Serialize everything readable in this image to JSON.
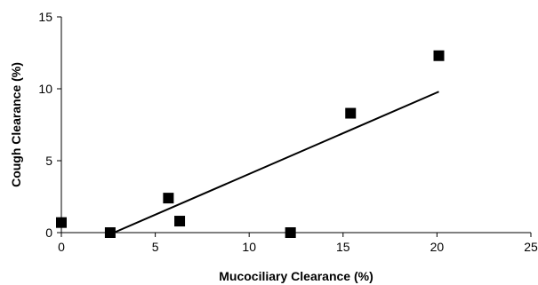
{
  "chart_data": {
    "type": "scatter",
    "title": "",
    "xlabel": "Mucociliary Clearance (%)",
    "ylabel": "Cough Clearance (%)",
    "xlim": [
      0,
      25
    ],
    "ylim": [
      0,
      15
    ],
    "xticks": [
      0,
      5,
      10,
      15,
      20,
      25
    ],
    "yticks": [
      0,
      5,
      10,
      15
    ],
    "grid": false,
    "series": [
      {
        "marker": "square",
        "color": "#000000",
        "points": [
          {
            "x": 0.0,
            "y": 0.7
          },
          {
            "x": 2.6,
            "y": 0.0
          },
          {
            "x": 5.7,
            "y": 2.4
          },
          {
            "x": 6.3,
            "y": 0.8
          },
          {
            "x": 12.2,
            "y": 0.0
          },
          {
            "x": 15.4,
            "y": 8.3
          },
          {
            "x": 20.1,
            "y": 12.3
          }
        ]
      }
    ],
    "trendline": {
      "type": "linear",
      "color": "#000000",
      "from": {
        "x": 2.8,
        "y": 0.0
      },
      "to": {
        "x": 20.1,
        "y": 9.8
      }
    }
  }
}
